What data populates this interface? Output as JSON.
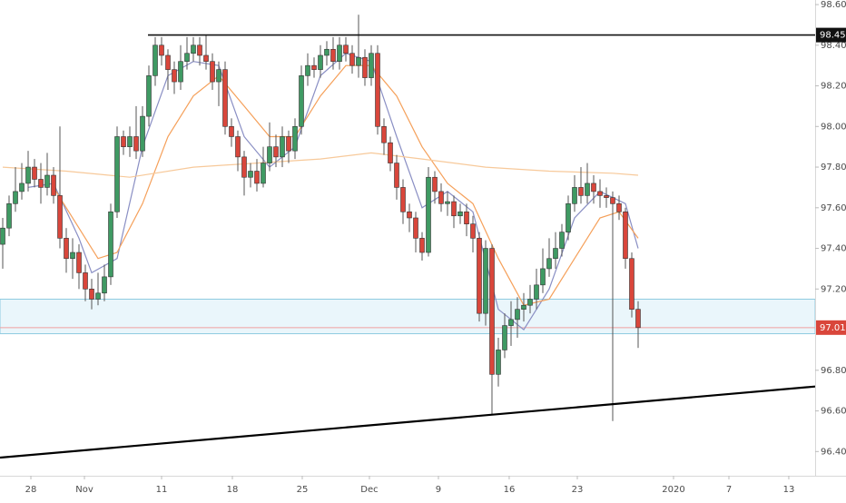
{
  "chart_data": {
    "type": "candlestick",
    "up_color": "#3f9a63",
    "down_color": "#d9463b",
    "x": [
      0,
      1,
      2,
      3,
      4,
      5,
      6,
      7,
      8,
      9,
      10,
      11,
      12,
      13,
      14,
      15,
      16,
      17,
      18,
      19,
      20,
      21,
      22,
      23,
      24,
      25,
      26,
      27,
      28,
      29,
      30,
      31,
      32,
      33,
      34,
      35,
      36,
      37,
      38,
      39,
      40,
      41,
      42,
      43,
      44,
      45,
      46,
      47,
      48,
      49,
      50,
      51,
      52,
      53,
      54,
      55,
      56,
      57,
      58,
      59,
      60,
      61,
      62,
      63,
      64,
      65,
      66,
      67,
      68,
      69,
      70,
      71,
      72,
      73,
      74,
      75,
      76,
      77,
      78,
      79,
      80,
      81,
      82,
      83,
      84,
      85,
      86,
      87,
      88,
      89,
      90,
      91,
      92,
      93,
      94,
      95,
      96,
      97,
      98,
      99,
      100
    ],
    "open": [
      97.42,
      97.5,
      97.62,
      97.68,
      97.72,
      97.8,
      97.74,
      97.7,
      97.76,
      97.66,
      97.45,
      97.35,
      97.38,
      97.28,
      97.2,
      97.15,
      97.18,
      97.26,
      97.58,
      97.95,
      97.9,
      97.95,
      97.88,
      98.05,
      98.25,
      98.4,
      98.35,
      98.28,
      98.22,
      98.32,
      98.36,
      98.4,
      98.35,
      98.32,
      98.22,
      98.28,
      98.0,
      97.95,
      97.85,
      97.75,
      97.78,
      97.72,
      97.82,
      97.9,
      97.85,
      97.95,
      97.88,
      98.0,
      98.25,
      98.3,
      98.28,
      98.35,
      98.38,
      98.32,
      98.4,
      98.36,
      98.3,
      98.34,
      98.24,
      98.36,
      98.0,
      97.92,
      97.82,
      97.7,
      97.58,
      97.55,
      97.45,
      97.38,
      97.75,
      97.68,
      97.62,
      97.63,
      97.56,
      97.58,
      97.52,
      97.45,
      97.08,
      97.4,
      96.78,
      96.9,
      97.02,
      97.05,
      97.1,
      97.12,
      97.15,
      97.22,
      97.3,
      97.35,
      97.4,
      97.48,
      97.62,
      97.7,
      97.66,
      97.72,
      97.68,
      97.66,
      97.65,
      97.62,
      97.58,
      97.35,
      97.1
    ],
    "high": [
      97.55,
      97.66,
      97.8,
      97.82,
      97.88,
      97.84,
      97.82,
      97.87,
      97.8,
      98.0,
      97.5,
      97.45,
      97.42,
      97.32,
      97.25,
      97.28,
      97.32,
      97.62,
      98.0,
      97.98,
      98.0,
      98.1,
      98.1,
      98.3,
      98.44,
      98.44,
      98.38,
      98.32,
      98.4,
      98.44,
      98.44,
      98.44,
      98.45,
      98.36,
      98.32,
      98.32,
      98.04,
      97.98,
      97.88,
      97.82,
      97.84,
      97.9,
      98.02,
      97.96,
      98.0,
      97.98,
      98.04,
      98.3,
      98.36,
      98.34,
      98.4,
      98.42,
      98.44,
      98.44,
      98.44,
      98.4,
      98.55,
      98.38,
      98.4,
      98.4,
      98.04,
      97.95,
      97.86,
      97.74,
      97.62,
      97.58,
      97.48,
      97.8,
      97.78,
      97.72,
      97.68,
      97.66,
      97.62,
      97.62,
      97.56,
      97.48,
      97.44,
      97.42,
      96.96,
      97.08,
      97.14,
      97.16,
      97.18,
      97.22,
      97.3,
      97.4,
      97.45,
      97.48,
      97.52,
      97.66,
      97.76,
      97.8,
      97.82,
      97.76,
      97.74,
      97.7,
      97.68,
      97.66,
      97.6,
      97.38,
      97.14
    ],
    "low": [
      97.3,
      97.46,
      97.58,
      97.64,
      97.68,
      97.7,
      97.62,
      97.66,
      97.62,
      97.4,
      97.28,
      97.25,
      97.2,
      97.14,
      97.1,
      97.12,
      97.14,
      97.22,
      97.55,
      97.86,
      97.85,
      97.84,
      97.85,
      98.0,
      98.2,
      98.3,
      98.18,
      98.16,
      98.18,
      98.28,
      98.32,
      98.3,
      98.28,
      98.18,
      98.1,
      97.96,
      97.9,
      97.78,
      97.66,
      97.7,
      97.68,
      97.7,
      97.78,
      97.8,
      97.8,
      97.82,
      97.84,
      97.96,
      98.2,
      98.24,
      98.24,
      98.3,
      98.28,
      98.28,
      98.32,
      98.26,
      98.24,
      98.2,
      98.2,
      97.96,
      97.86,
      97.78,
      97.64,
      97.52,
      97.48,
      97.38,
      97.34,
      97.36,
      97.62,
      97.58,
      97.56,
      97.5,
      97.52,
      97.46,
      97.38,
      97.04,
      97.02,
      96.58,
      96.72,
      96.86,
      96.92,
      96.96,
      97.04,
      97.08,
      97.1,
      97.18,
      97.26,
      97.3,
      97.36,
      97.44,
      97.58,
      97.62,
      97.62,
      97.62,
      97.6,
      97.6,
      96.55,
      97.54,
      97.3,
      97.06,
      96.91
    ],
    "close": [
      97.5,
      97.62,
      97.68,
      97.72,
      97.8,
      97.74,
      97.7,
      97.76,
      97.66,
      97.45,
      97.35,
      97.38,
      97.28,
      97.2,
      97.15,
      97.18,
      97.26,
      97.58,
      97.95,
      97.9,
      97.95,
      97.88,
      98.05,
      98.25,
      98.4,
      98.35,
      98.28,
      98.22,
      98.32,
      98.36,
      98.4,
      98.35,
      98.32,
      98.22,
      98.28,
      98.0,
      97.95,
      97.85,
      97.75,
      97.78,
      97.72,
      97.82,
      97.9,
      97.85,
      97.95,
      97.88,
      98.0,
      98.25,
      98.3,
      98.28,
      98.35,
      98.38,
      98.32,
      98.4,
      98.36,
      98.3,
      98.34,
      98.24,
      98.36,
      98.0,
      97.92,
      97.82,
      97.7,
      97.58,
      97.55,
      97.45,
      97.38,
      97.75,
      97.68,
      97.62,
      97.63,
      97.56,
      97.58,
      97.52,
      97.45,
      97.08,
      97.4,
      96.78,
      96.9,
      97.02,
      97.05,
      97.1,
      97.12,
      97.15,
      97.22,
      97.3,
      97.35,
      97.4,
      97.48,
      97.62,
      97.7,
      97.66,
      97.72,
      97.68,
      97.66,
      97.65,
      97.62,
      97.58,
      97.35,
      97.1,
      97.01
    ],
    "lines": [
      {
        "color": "#8a8fc4",
        "x": [
          4,
          8,
          12,
          14,
          18,
          22,
          26,
          30,
          34,
          38,
          42,
          46,
          50,
          54,
          58,
          62,
          66,
          70,
          74,
          78,
          82,
          86,
          90,
          94,
          98,
          100
        ],
        "values": [
          97.7,
          97.72,
          97.45,
          97.28,
          97.35,
          97.9,
          98.25,
          98.32,
          98.3,
          97.95,
          97.8,
          97.9,
          98.25,
          98.36,
          98.32,
          97.95,
          97.6,
          97.68,
          97.58,
          97.1,
          97.0,
          97.2,
          97.55,
          97.68,
          97.62,
          97.4
        ]
      },
      {
        "color": "#f5a05a",
        "x": [
          8,
          12,
          15,
          18,
          22,
          26,
          30,
          34,
          38,
          42,
          46,
          50,
          54,
          58,
          62,
          66,
          70,
          74,
          78,
          82,
          86,
          90,
          94,
          97,
          100
        ],
        "values": [
          97.7,
          97.5,
          97.35,
          97.38,
          97.62,
          97.95,
          98.15,
          98.25,
          98.1,
          97.95,
          97.95,
          98.15,
          98.3,
          98.3,
          98.15,
          97.9,
          97.72,
          97.62,
          97.35,
          97.12,
          97.15,
          97.35,
          97.55,
          97.58,
          97.45
        ]
      },
      {
        "color": "#f7c99a",
        "x": [
          0,
          10,
          20,
          30,
          40,
          50,
          58,
          66,
          76,
          86,
          96,
          100
        ],
        "values": [
          97.8,
          97.78,
          97.75,
          97.8,
          97.82,
          97.84,
          97.87,
          97.84,
          97.8,
          97.78,
          97.77,
          97.76
        ]
      }
    ],
    "resistance": {
      "value": 98.45,
      "x_start": 22.86
    },
    "zone": {
      "top": 97.15,
      "bottom": 96.98
    },
    "last_price": 97.01,
    "trendline": {
      "x": [
        -0.43,
        127.86
      ],
      "values": [
        96.37,
        96.72
      ]
    },
    "xlim": [
      -0.43,
      127.86
    ],
    "ylim": [
      96.38,
      98.61
    ],
    "xticks": [
      {
        "value": 4.43,
        "label": "28"
      },
      {
        "value": 12.86,
        "label": "Nov"
      },
      {
        "value": 25,
        "label": "11"
      },
      {
        "value": 36.14,
        "label": "18"
      },
      {
        "value": 47.14,
        "label": "25"
      },
      {
        "value": 57.71,
        "label": "Dec"
      },
      {
        "value": 68.57,
        "label": "9"
      },
      {
        "value": 79.71,
        "label": "16"
      },
      {
        "value": 90.43,
        "label": "23"
      },
      {
        "value": 105.57,
        "label": "2020"
      },
      {
        "value": 114.29,
        "label": "7"
      },
      {
        "value": 123.71,
        "label": "13"
      }
    ],
    "yticks": [
      {
        "value": 98.6,
        "label": "98.60"
      },
      {
        "value": 98.4,
        "label": "98.40"
      },
      {
        "value": 98.2,
        "label": "98.20"
      },
      {
        "value": 98.0,
        "label": "98.00"
      },
      {
        "value": 97.8,
        "label": "97.80"
      },
      {
        "value": 97.6,
        "label": "97.60"
      },
      {
        "value": 97.4,
        "label": "97.40"
      },
      {
        "value": 97.2,
        "label": "97.20"
      },
      {
        "value": 96.8,
        "label": "96.80"
      },
      {
        "value": 96.6,
        "label": "96.60"
      },
      {
        "value": 96.4,
        "label": "96.40"
      }
    ]
  }
}
